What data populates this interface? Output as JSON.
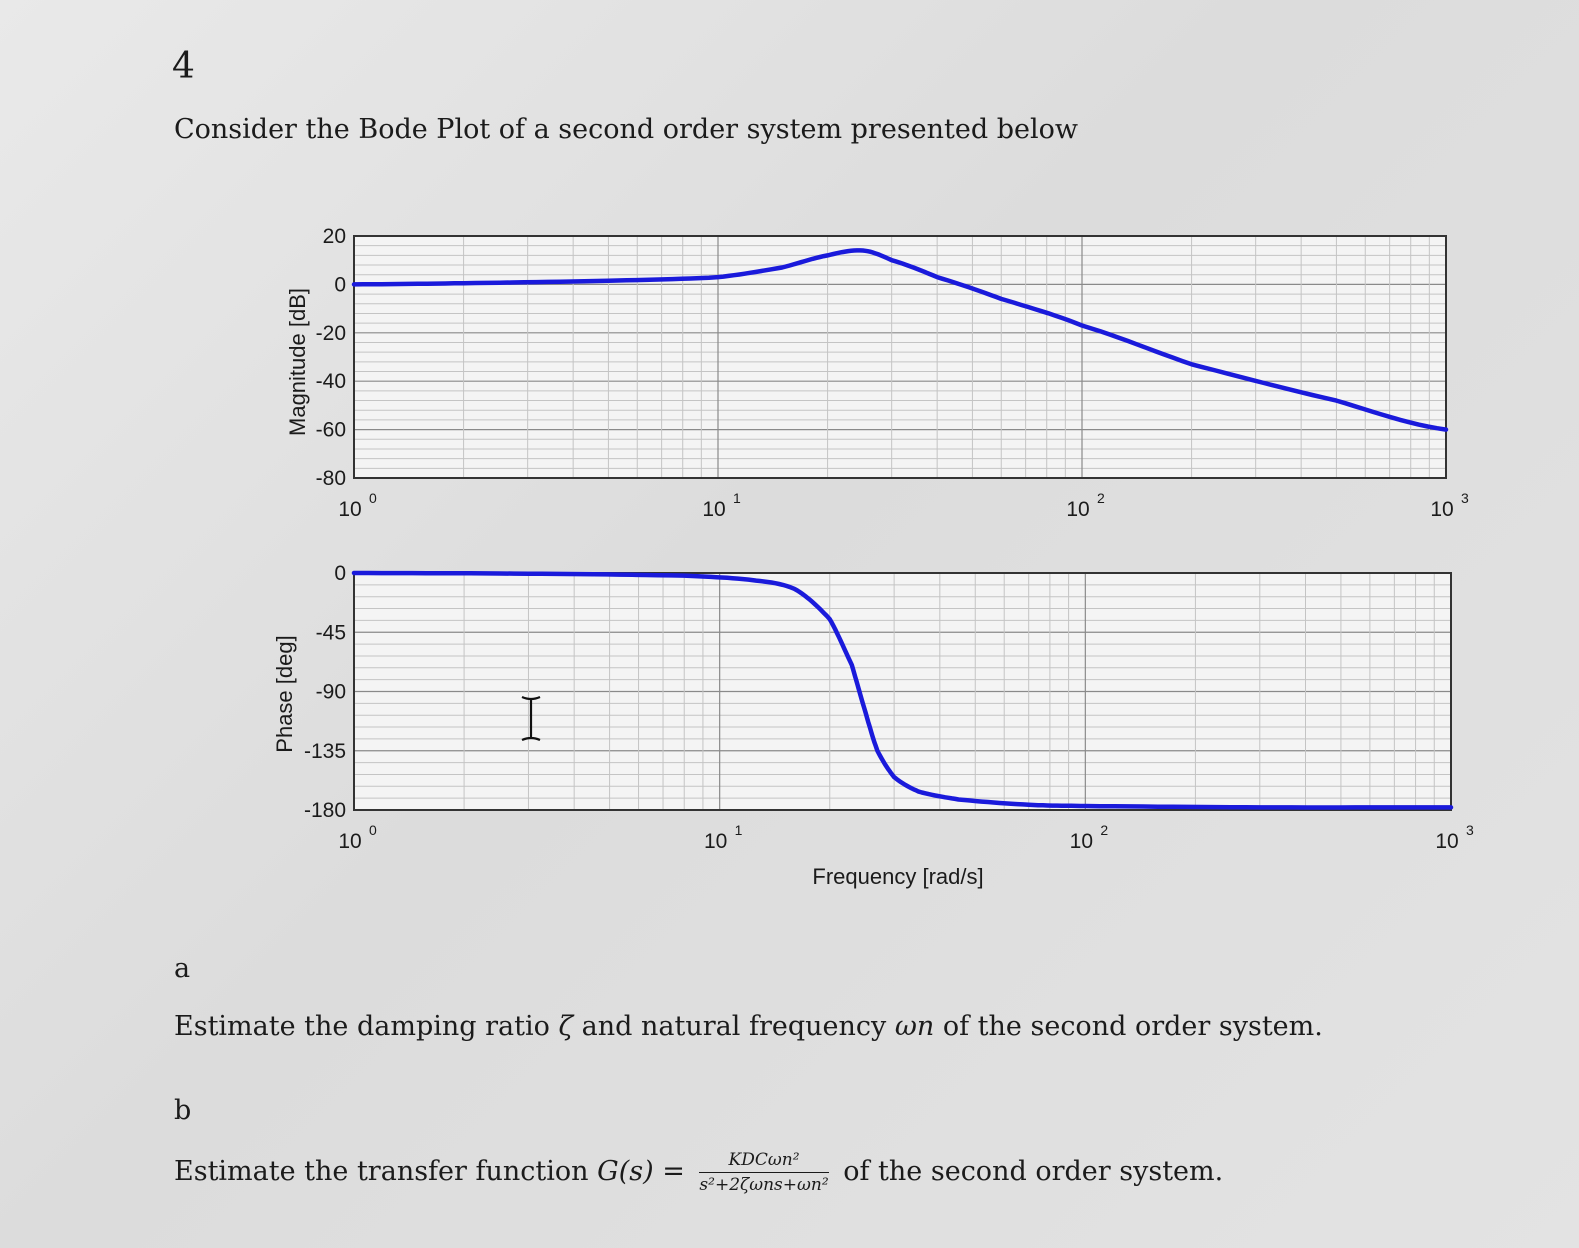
{
  "question": {
    "number": "4",
    "intro": "Consider the Bode Plot of a second order system presented below"
  },
  "parts": [
    {
      "label": "a",
      "text_pre": "Estimate the damping ratio ",
      "sym1": "ζ",
      "text_mid": " and natural frequency ",
      "sym2": "ωn",
      "text_post": " of the second order system."
    },
    {
      "label": "b",
      "text_pre": "Estimate the transfer function ",
      "func": "G(s) = ",
      "frac_num": "KDCωn²",
      "frac_den": "s²+2ζωns+ωn²",
      "text_post": " of the second order system."
    }
  ],
  "colors": {
    "curve": "#1a1adb",
    "frame": "#333333",
    "grid_major": "#8a8a8a",
    "grid_minor": "#c4c4c4"
  },
  "cursor_icon": "text-cursor-icon",
  "chart_data": [
    {
      "type": "line",
      "title": "",
      "xlabel": "",
      "ylabel": "Magnitude [dB]",
      "xscale": "log",
      "xlim": [
        1,
        1000
      ],
      "ylim": [
        -80,
        20
      ],
      "yticks": [
        20,
        0,
        -20,
        -40,
        -60,
        -80
      ],
      "xticks": [
        "10^0",
        "10^1",
        "10^2",
        "10^3"
      ],
      "grid": true,
      "series": [
        {
          "x": [
            1,
            2,
            5,
            10,
            15,
            20,
            25,
            30,
            40,
            60,
            100,
            200,
            500,
            1000
          ],
          "y": [
            0,
            0.5,
            1.5,
            3,
            7,
            12,
            14,
            10,
            3,
            -6,
            -17,
            -33,
            -48,
            -60
          ]
        }
      ]
    },
    {
      "type": "line",
      "title": "",
      "xlabel": "Frequency [rad/s]",
      "ylabel": "Phase [deg]",
      "xscale": "log",
      "xlim": [
        1,
        1000
      ],
      "ylim": [
        -180,
        0
      ],
      "yticks": [
        0,
        -45,
        -90,
        -135,
        -180
      ],
      "xticks": [
        "10^0",
        "10^1",
        "10^2",
        "10^3"
      ],
      "grid": true,
      "series": [
        {
          "x": [
            1,
            3,
            8,
            12,
            16,
            20,
            23,
            25,
            27,
            30,
            35,
            45,
            70,
            100,
            300,
            1000
          ],
          "y": [
            0,
            -0.5,
            -2,
            -5,
            -12,
            -35,
            -70,
            -105,
            -135,
            -155,
            -166,
            -172,
            -176,
            -177,
            -178,
            -178
          ]
        }
      ]
    }
  ]
}
